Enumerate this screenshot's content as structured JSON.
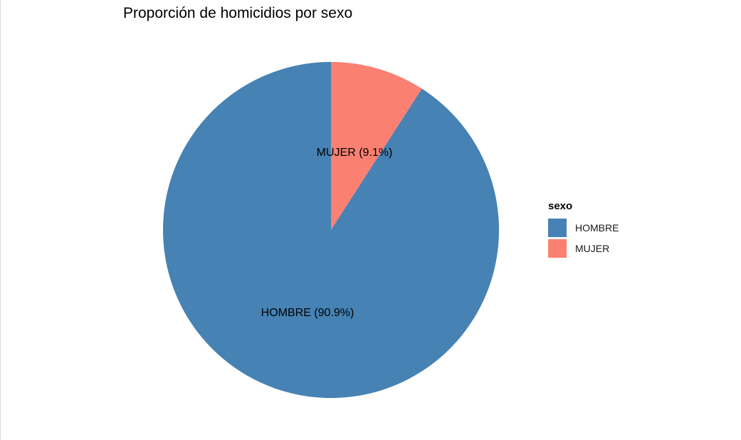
{
  "chart_data": {
    "type": "pie",
    "title": "Proporción de homicidios por sexo",
    "legend_title": "sexo",
    "legend_position": "right",
    "slices": [
      {
        "category": "HOMBRE",
        "value": 90.9,
        "label": "HOMBRE (90.9%)",
        "color": "#4682B4"
      },
      {
        "category": "MUJER",
        "value": 9.1,
        "label": "MUJER (9.1%)",
        "color": "#FA8072"
      }
    ]
  }
}
